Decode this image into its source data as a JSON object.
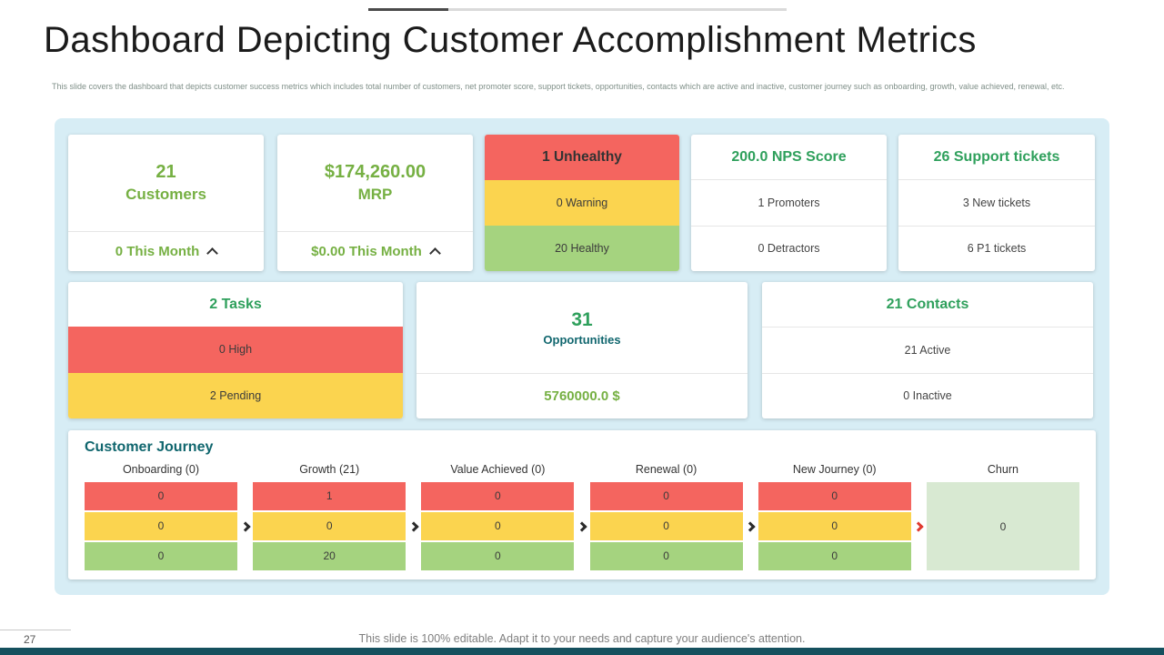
{
  "slide": {
    "title": "Dashboard Depicting Customer Accomplishment Metrics",
    "subtitle": "This slide covers the dashboard that depicts customer success metrics which includes total number of customers, net promoter score, support tickets, opportunities, contacts which are active and inactive, customer journey such as onboarding, growth, value achieved, renewal, etc.",
    "page_number": "27",
    "footer_note": "This slide is 100% editable. Adapt it to your needs and capture your audience's attention."
  },
  "colors": {
    "panel_bg": "#d7edf5",
    "red": "#f4655f",
    "yellow": "#fbd44f",
    "green": "#a5d37f",
    "green_text": "#76b043",
    "header_green": "#2fa05c",
    "teal": "#10666e",
    "churn_bg": "#d8e9d2",
    "footer_bar": "#15505e"
  },
  "cards": {
    "customers": {
      "value": "21",
      "label": "Customers",
      "footer": "0 This Month"
    },
    "mrp": {
      "value": "$174,260.00",
      "label": "MRP",
      "footer": "$0.00 This Month"
    },
    "health": {
      "rows": [
        {
          "label": "1 Unhealthy"
        },
        {
          "label": "0 Warning"
        },
        {
          "label": "20 Healthy"
        }
      ]
    },
    "nps": {
      "header": "200.0 NPS Score",
      "rows": [
        "1 Promoters",
        "0 Detractors"
      ]
    },
    "support": {
      "header": "26 Support tickets",
      "rows": [
        "3 New tickets",
        "6 P1 tickets"
      ]
    },
    "tasks": {
      "header": "2 Tasks",
      "rows": [
        {
          "label": "0 High"
        },
        {
          "label": "2 Pending"
        }
      ]
    },
    "opportunities": {
      "value": "31",
      "label": "Opportunities",
      "footer": "5760000.0 $"
    },
    "contacts": {
      "header": "21 Contacts",
      "rows": [
        "21 Active",
        "0 Inactive"
      ]
    }
  },
  "journey": {
    "title": "Customer Journey",
    "stages": [
      {
        "header": "Onboarding (0)",
        "values": [
          "0",
          "0",
          "0"
        ]
      },
      {
        "header": "Growth (21)",
        "values": [
          "1",
          "0",
          "20"
        ]
      },
      {
        "header": "Value Achieved (0)",
        "values": [
          "0",
          "0",
          "0"
        ]
      },
      {
        "header": "Renewal (0)",
        "values": [
          "0",
          "0",
          "0"
        ]
      },
      {
        "header": "New Journey (0)",
        "values": [
          "0",
          "0",
          "0"
        ]
      }
    ],
    "churn": {
      "header": "Churn",
      "value": "0"
    }
  }
}
